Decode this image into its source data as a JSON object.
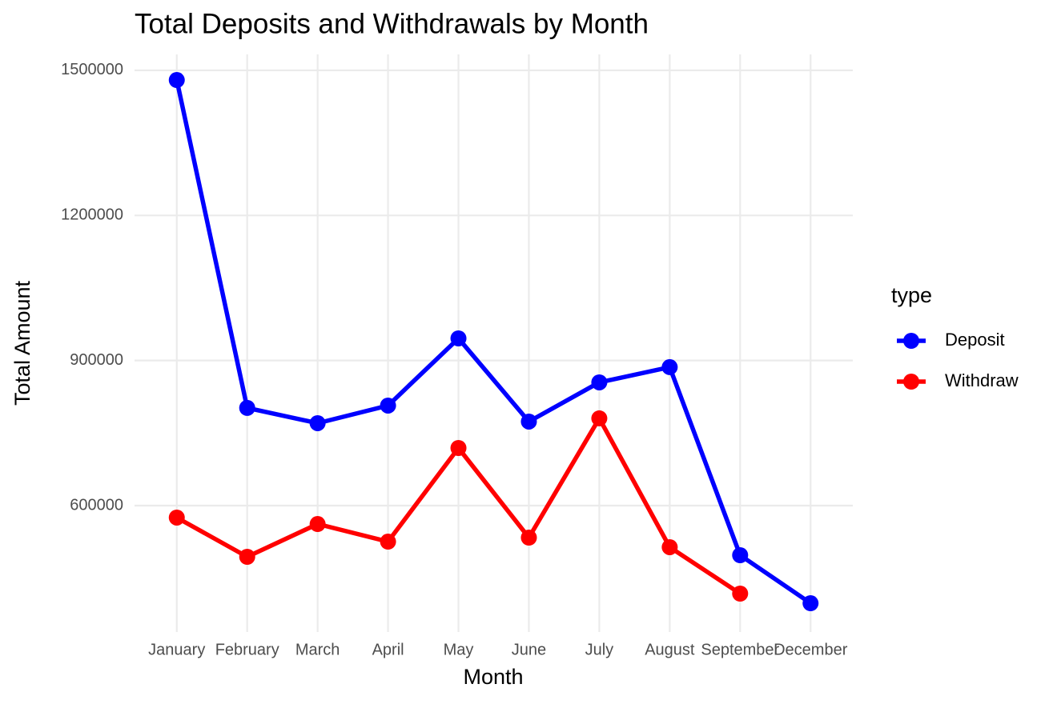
{
  "chart_data": {
    "type": "line",
    "title": "Total Deposits and Withdrawals by Month",
    "x_label": "Month",
    "y_label": "Total Amount",
    "categories": [
      "January",
      "February",
      "March",
      "April",
      "May",
      "June",
      "July",
      "August",
      "September",
      "December"
    ],
    "series": [
      {
        "name": "Deposit",
        "color": "#0000ff",
        "values": [
          1480000,
          802000,
          770400,
          806800,
          945800,
          773700,
          854800,
          886300,
          497400,
          398100
        ]
      },
      {
        "name": "Withdraw",
        "color": "#ff0000",
        "values": [
          575200,
          494100,
          561900,
          525500,
          719100,
          533800,
          780400,
          514000,
          418000,
          null
        ]
      }
    ],
    "ylim": [
      338600,
      1533000
    ],
    "yticks": [
      600000,
      900000,
      1200000,
      1500000
    ],
    "grid": true,
    "legend_title": "type",
    "legend_position": "right"
  }
}
